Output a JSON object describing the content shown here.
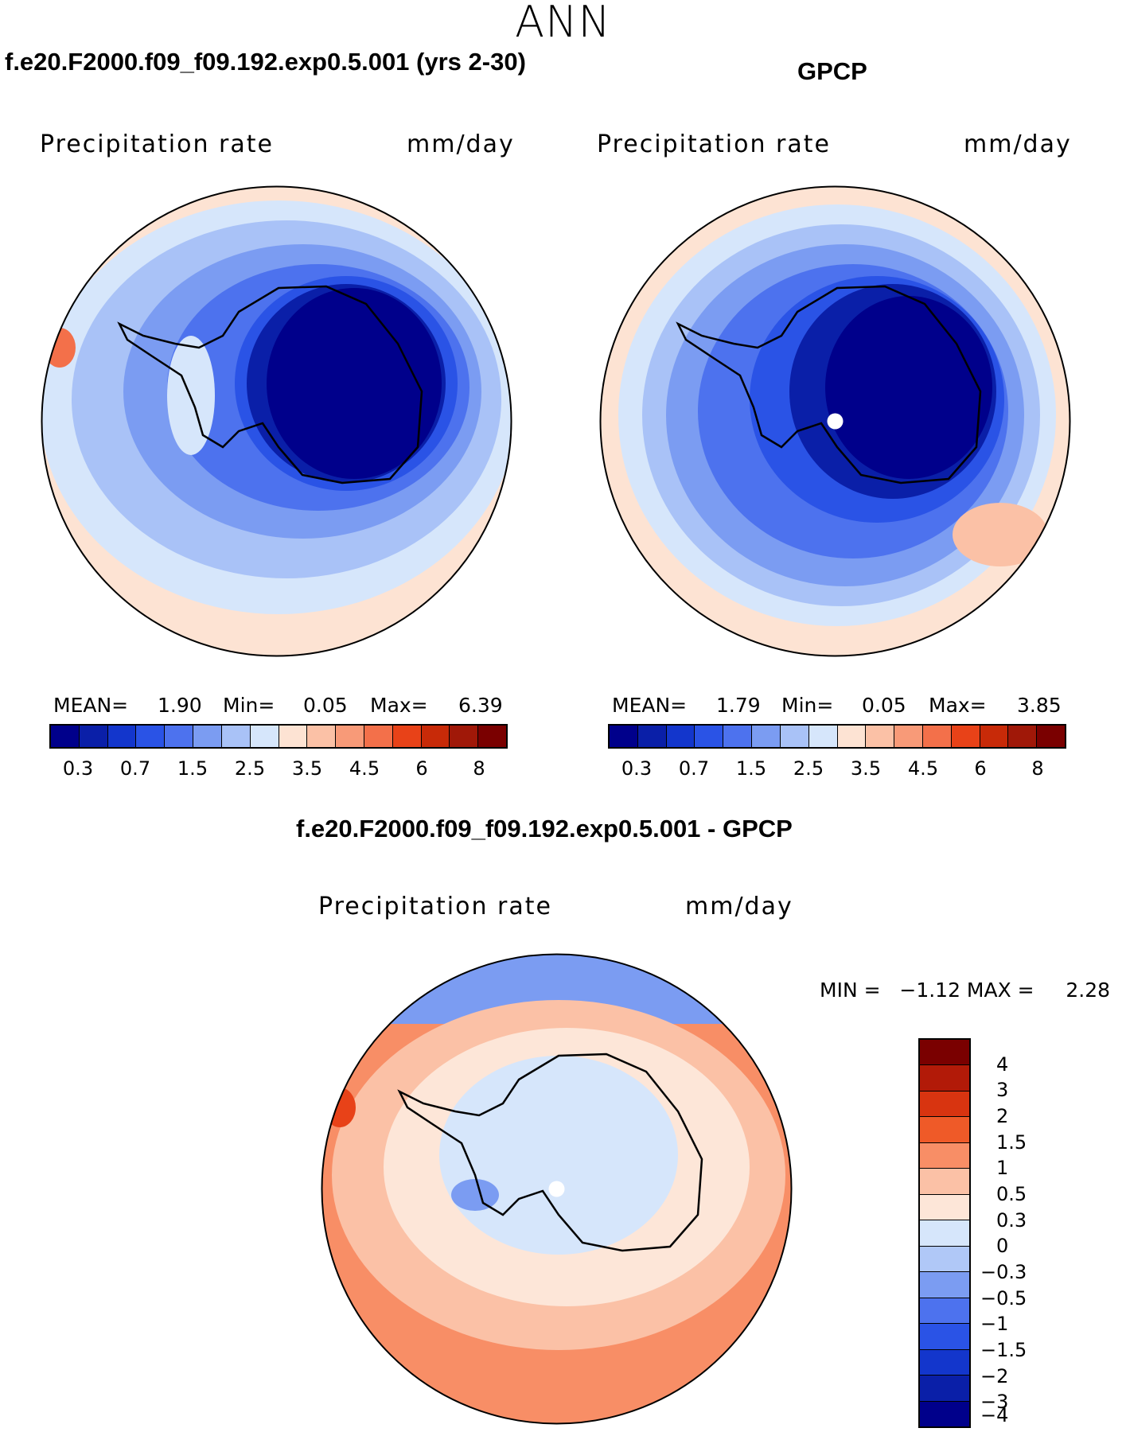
{
  "title": "ANN",
  "panels": {
    "model": {
      "title": "f.e20.F2000.f09_f09.192.exp0.5.001 (yrs 2-30)",
      "variable": "Precipitation rate",
      "units": "mm/day",
      "mean_label": "MEAN=",
      "mean": "1.90",
      "min_label": "Min=",
      "min": "0.05",
      "max_label": "Max=",
      "max": "6.39"
    },
    "obs": {
      "title": "GPCP",
      "variable": "Precipitation rate",
      "units": "mm/day",
      "mean_label": "MEAN=",
      "mean": "1.79",
      "min_label": "Min=",
      "min": "0.05",
      "max_label": "Max=",
      "max": "3.85"
    },
    "diff": {
      "title": "f.e20.F2000.f09_f09.192.exp0.5.001 - GPCP",
      "variable": "Precipitation rate",
      "units": "mm/day",
      "minmax_text": "MIN =   −1.12 MAX =     2.28"
    }
  },
  "colorbar_abs": {
    "colors": [
      "#00008b",
      "#0a1fa8",
      "#1336cc",
      "#2a53e6",
      "#4d72ee",
      "#7b9cf2",
      "#a9c2f7",
      "#d6e6fb",
      "#fde3d3",
      "#fbc1a6",
      "#f89a78",
      "#f3704a",
      "#e84218",
      "#c82a08",
      "#a01808",
      "#7a0000"
    ],
    "ticks": [
      "0.3",
      "0.7",
      "1.5",
      "2.5",
      "3.5",
      "4.5",
      "6",
      "8"
    ]
  },
  "colorbar_diff": {
    "colors": [
      "#7a0000",
      "#b21a08",
      "#d83410",
      "#ef5a28",
      "#f88e66",
      "#fbc1a6",
      "#fde6d8",
      "#d6e6fb",
      "#b0c8f7",
      "#7b9cf2",
      "#4d72ee",
      "#2a53e6",
      "#1336cc",
      "#0a1fa8",
      "#00008b"
    ],
    "ticks": [
      "4",
      "3",
      "2",
      "1.5",
      "1",
      "0.5",
      "0.3",
      "0",
      "−0.3",
      "−0.5",
      "−1",
      "−1.5",
      "−2",
      "−3",
      "−4"
    ]
  }
}
